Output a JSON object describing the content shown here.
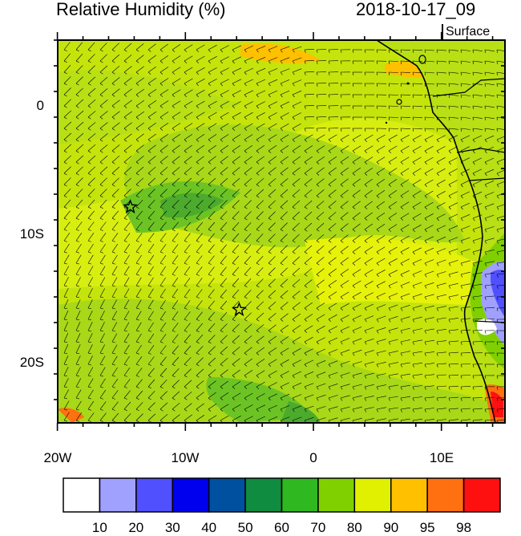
{
  "title_left": "Relative Humidity (%)",
  "title_right": "2018-10-17_09",
  "level_label": "Surface",
  "lat_ticks": [
    "0",
    "10S",
    "20S"
  ],
  "lon_ticks": [
    "20W",
    "10W",
    "0",
    "10E"
  ],
  "colorbar": {
    "colors": [
      "#ffffff",
      "#a0a0ff",
      "#5050ff",
      "#0000ee",
      "#0050a0",
      "#108c40",
      "#30b820",
      "#80d000",
      "#e0f000",
      "#ffc000",
      "#ff7010",
      "#ff1010"
    ],
    "labels": [
      "10",
      "20",
      "30",
      "40",
      "50",
      "60",
      "70",
      "80",
      "90",
      "95",
      "98"
    ]
  },
  "markers": [
    {
      "name": "star-marker-1",
      "lon": -14.3,
      "lat": -8.0
    },
    {
      "name": "star-marker-2",
      "lon": -5.8,
      "lat": -16.0
    }
  ],
  "field_colors": {
    "base": "#c4e40c",
    "moist": "#a8d818",
    "dry_band": "#d8ee10",
    "very_moist": "#6cc424",
    "saturated": "#4caa2c",
    "coast_wet": "#ffc000",
    "coast_high": "#ff7010",
    "coast_blue": "#a0a0ff",
    "coast_blue2": "#5050ff"
  }
}
